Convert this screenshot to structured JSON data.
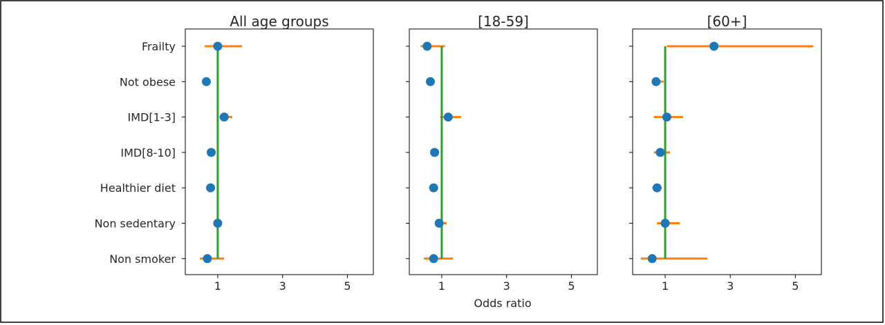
{
  "chart_data": {
    "type": "scatter",
    "subtype": "forest-plot",
    "xlabel": "Odds ratio",
    "xlim": [
      0,
      5.8
    ],
    "xticks": [
      1,
      3,
      5
    ],
    "reference_line": 1,
    "categories": [
      "Frailty",
      "Not obese",
      "IMD[1-3]",
      "IMD[8-10]",
      "Healthier diet",
      "Non sedentary",
      "Non smoker"
    ],
    "colors": {
      "point": "#1f77b4",
      "interval": "#ff7f0e",
      "reference": "#2ca02c"
    },
    "panels": [
      {
        "title": "All age groups",
        "or": [
          1.0,
          0.65,
          1.2,
          0.8,
          0.78,
          1.0,
          0.68
        ],
        "low": [
          0.6,
          0.62,
          1.05,
          0.75,
          0.72,
          0.92,
          0.45
        ],
        "high": [
          1.75,
          0.68,
          1.45,
          0.88,
          0.85,
          1.08,
          1.2
        ]
      },
      {
        "title": "[18-59]",
        "or": [
          0.55,
          0.65,
          1.2,
          0.78,
          0.75,
          0.92,
          0.75
        ],
        "low": [
          0.35,
          0.6,
          0.95,
          0.7,
          0.68,
          0.8,
          0.45
        ],
        "high": [
          1.1,
          0.7,
          1.6,
          0.85,
          0.82,
          1.15,
          1.35
        ]
      },
      {
        "title": "[60+]",
        "or": [
          2.5,
          0.72,
          1.05,
          0.85,
          0.75,
          1.0,
          0.6
        ],
        "low": [
          1.05,
          0.6,
          0.65,
          0.65,
          0.6,
          0.75,
          0.25
        ],
        "high": [
          5.55,
          0.95,
          1.55,
          1.15,
          0.9,
          1.45,
          2.3
        ]
      }
    ]
  }
}
